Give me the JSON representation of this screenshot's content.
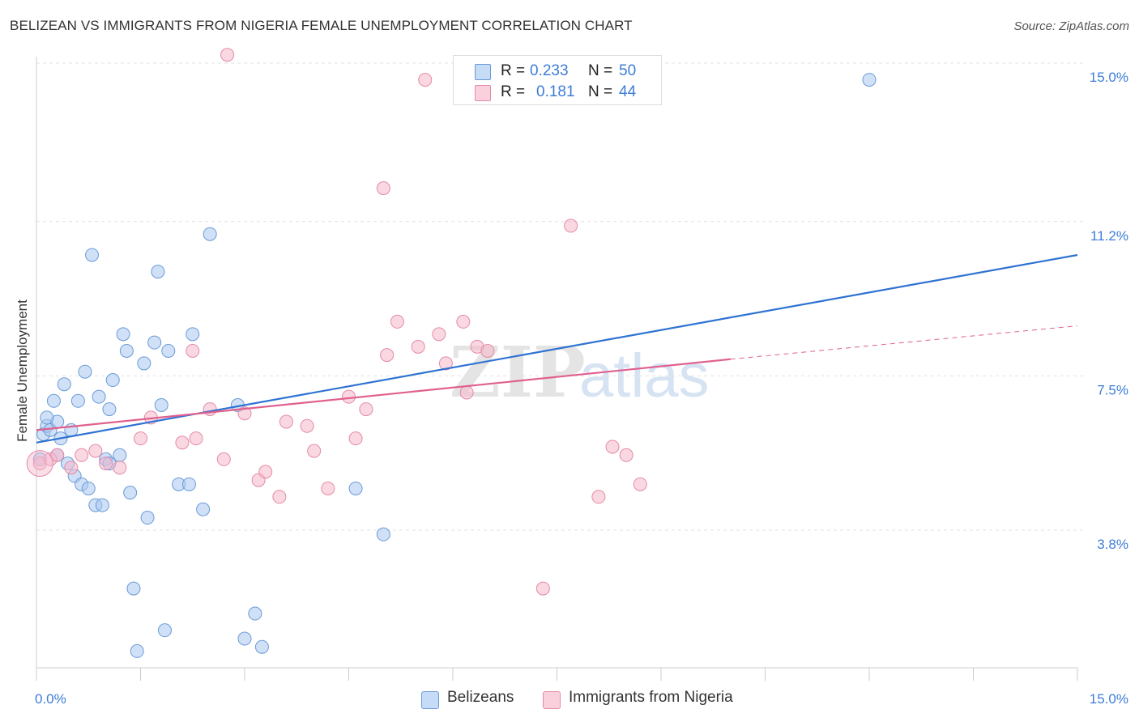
{
  "header": {
    "title": "BELIZEAN VS IMMIGRANTS FROM NIGERIA FEMALE UNEMPLOYMENT CORRELATION CHART",
    "source": "Source: ZipAtlas.com"
  },
  "legend": {
    "series": [
      {
        "r_label": "R =",
        "r_value": "0.233",
        "n_label": "N =",
        "n_value": "50"
      },
      {
        "r_label": "R =",
        "r_value": "0.181",
        "n_label": "N =",
        "n_value": "44"
      }
    ]
  },
  "watermark": {
    "part1": "ZIP",
    "part2": "atlas"
  },
  "colors": {
    "blue_fill": "#aac8f0",
    "blue_stroke": "#6a9ad8",
    "blue_line": "#2e72d2",
    "pink_fill": "#f6b8cb",
    "pink_stroke": "#e48aa6",
    "pink_line": "#e0608e",
    "tick_label": "#3d7dd8",
    "grid": "#e2e2e2"
  },
  "chart_data": {
    "type": "scatter",
    "title": "BELIZEAN VS IMMIGRANTS FROM NIGERIA FEMALE UNEMPLOYMENT CORRELATION CHART",
    "xlabel": "",
    "ylabel": "Female Unemployment",
    "xlim": [
      0,
      15
    ],
    "ylim": [
      0.5,
      15.8
    ],
    "x_tick_labels": [
      "0.0%",
      "15.0%"
    ],
    "y_ticks": [
      3.8,
      7.5,
      11.2,
      15.0
    ],
    "y_tick_labels": [
      "3.8%",
      "7.5%",
      "11.2%",
      "15.0%"
    ],
    "grid": true,
    "legend_position": "bottom",
    "series": [
      {
        "name": "Belizeans",
        "points": [
          [
            0.05,
            5.5
          ],
          [
            0.1,
            6.1
          ],
          [
            0.15,
            6.3
          ],
          [
            0.2,
            6.2
          ],
          [
            0.25,
            6.9
          ],
          [
            0.3,
            6.4
          ],
          [
            0.35,
            6.0
          ],
          [
            0.4,
            7.3
          ],
          [
            0.45,
            5.4
          ],
          [
            0.5,
            6.2
          ],
          [
            0.55,
            5.1
          ],
          [
            0.6,
            6.9
          ],
          [
            0.65,
            4.9
          ],
          [
            0.7,
            7.6
          ],
          [
            0.75,
            4.8
          ],
          [
            0.8,
            10.4
          ],
          [
            0.85,
            4.4
          ],
          [
            0.9,
            7.0
          ],
          [
            0.95,
            4.4
          ],
          [
            1.0,
            5.5
          ],
          [
            1.05,
            6.7
          ],
          [
            1.1,
            7.4
          ],
          [
            1.2,
            5.6
          ],
          [
            1.25,
            8.5
          ],
          [
            1.3,
            8.1
          ],
          [
            1.35,
            4.7
          ],
          [
            1.4,
            2.4
          ],
          [
            1.45,
            0.9
          ],
          [
            1.55,
            7.8
          ],
          [
            1.6,
            4.1
          ],
          [
            1.7,
            8.3
          ],
          [
            1.75,
            10.0
          ],
          [
            1.8,
            6.8
          ],
          [
            1.85,
            1.4
          ],
          [
            1.9,
            8.1
          ],
          [
            2.05,
            4.9
          ],
          [
            2.2,
            4.9
          ],
          [
            2.25,
            8.5
          ],
          [
            2.4,
            4.3
          ],
          [
            2.5,
            10.9
          ],
          [
            2.9,
            6.8
          ],
          [
            3.0,
            1.2
          ],
          [
            3.15,
            1.8
          ],
          [
            3.25,
            1.0
          ],
          [
            4.6,
            4.8
          ],
          [
            5.0,
            3.7
          ],
          [
            12.0,
            14.6
          ],
          [
            0.15,
            6.5
          ],
          [
            0.3,
            5.6
          ],
          [
            1.05,
            5.4
          ]
        ],
        "trend": {
          "x": [
            0,
            15
          ],
          "y": [
            5.9,
            10.4
          ]
        }
      },
      {
        "name": "Immigrants from Nigeria",
        "points": [
          [
            0.05,
            5.4
          ],
          [
            0.2,
            5.5
          ],
          [
            0.3,
            5.6
          ],
          [
            0.5,
            5.3
          ],
          [
            0.65,
            5.6
          ],
          [
            0.85,
            5.7
          ],
          [
            1.0,
            5.4
          ],
          [
            1.2,
            5.3
          ],
          [
            1.5,
            6.0
          ],
          [
            1.65,
            6.5
          ],
          [
            2.1,
            5.9
          ],
          [
            2.25,
            8.1
          ],
          [
            2.3,
            6.0
          ],
          [
            2.5,
            6.7
          ],
          [
            2.7,
            5.5
          ],
          [
            3.0,
            6.6
          ],
          [
            3.2,
            5.0
          ],
          [
            3.3,
            5.2
          ],
          [
            3.5,
            4.6
          ],
          [
            3.6,
            6.4
          ],
          [
            3.9,
            6.3
          ],
          [
            4.0,
            5.7
          ],
          [
            4.2,
            4.8
          ],
          [
            4.5,
            7.0
          ],
          [
            4.6,
            6.0
          ],
          [
            4.75,
            6.7
          ],
          [
            5.0,
            12.0
          ],
          [
            5.05,
            8.0
          ],
          [
            5.2,
            8.8
          ],
          [
            5.5,
            8.2
          ],
          [
            5.6,
            14.6
          ],
          [
            5.8,
            8.5
          ],
          [
            5.9,
            7.8
          ],
          [
            6.15,
            8.8
          ],
          [
            6.2,
            7.1
          ],
          [
            6.35,
            8.2
          ],
          [
            6.5,
            8.1
          ],
          [
            7.3,
            2.4
          ],
          [
            7.7,
            11.1
          ],
          [
            8.1,
            4.6
          ],
          [
            8.3,
            5.8
          ],
          [
            8.5,
            5.6
          ],
          [
            8.7,
            4.9
          ],
          [
            2.75,
            15.2
          ]
        ],
        "trend": {
          "x": [
            0,
            10
          ],
          "y": [
            6.2,
            7.9
          ]
        },
        "trend_extension": {
          "x": [
            10,
            15
          ],
          "y": [
            7.9,
            8.7
          ]
        }
      }
    ]
  }
}
